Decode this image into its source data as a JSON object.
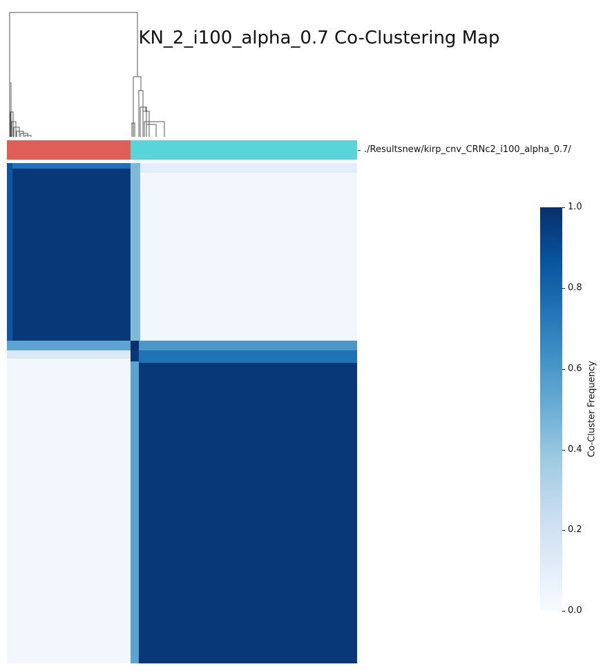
{
  "title": "KN_2_i100_alpha_0.7 Co-Clustering Map",
  "chart_data": {
    "type": "heatmap",
    "title": "KN_2_i100_alpha_0.7 Co-Clustering Map",
    "row_annotation_label": "./Resultsnew/kirp_cnv_CRNc2_i100_alpha_0.7/",
    "clusters": [
      {
        "fraction": 0.353,
        "color": "#dd5f57"
      },
      {
        "fraction": 0.647,
        "color": "#59d5da"
      }
    ],
    "colorbar": {
      "label": "Co-Cluster Frequency",
      "range": [
        0.0,
        1.0
      ],
      "ticks": [
        "0.0",
        "0.2",
        "0.4",
        "0.6",
        "0.8",
        "1.0"
      ],
      "colormap": "Blues"
    },
    "block_values": {
      "within_cluster_1": 0.97,
      "within_cluster_2": 0.97,
      "between_clusters": 0.03,
      "boundary_rows": 0.6
    },
    "dendrogram": "top"
  }
}
